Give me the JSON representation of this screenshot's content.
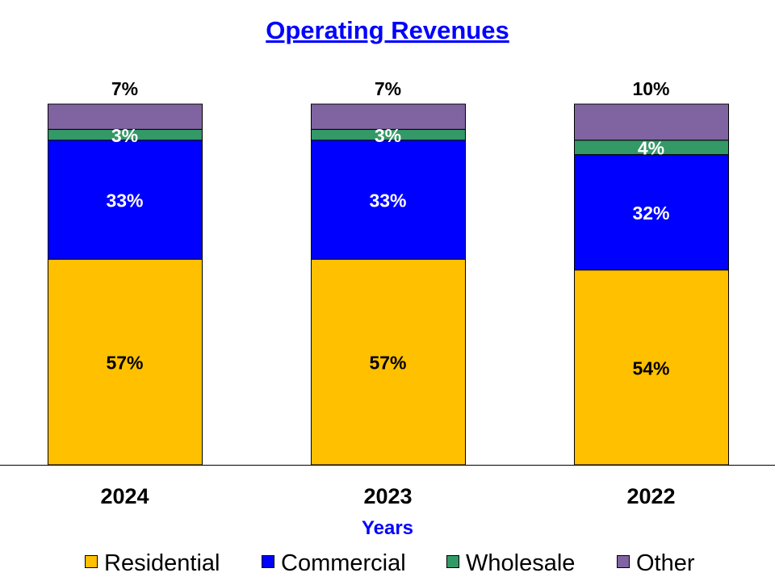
{
  "chart_data": {
    "type": "bar",
    "stacked": true,
    "percent_stacked": true,
    "title": "Operating Revenues",
    "xlabel": "Years",
    "ylabel": "",
    "ylim": [
      0,
      100
    ],
    "grid": false,
    "legend_position": "bottom",
    "categories": [
      "2024",
      "2023",
      "2022"
    ],
    "series": [
      {
        "name": "Residential",
        "values": [
          57,
          57,
          54
        ],
        "labels": [
          "57%",
          "57%",
          "54%"
        ],
        "color": "#FFC000",
        "label_color": "#000000"
      },
      {
        "name": "Commercial",
        "values": [
          33,
          33,
          32
        ],
        "labels": [
          "33%",
          "33%",
          "32%"
        ],
        "color": "#0000FF",
        "label_color": "#FFFFFF"
      },
      {
        "name": "Wholesale",
        "values": [
          3,
          3,
          4
        ],
        "labels": [
          "3%",
          "3%",
          "4%"
        ],
        "color": "#339966",
        "label_color": "#FFFFFF"
      },
      {
        "name": "Other",
        "values": [
          7,
          7,
          10
        ],
        "labels": [
          "7%",
          "7%",
          "10%"
        ],
        "color": "#8064A2",
        "label_color": "#000000"
      }
    ],
    "title_color": "#0000FF",
    "xlabel_color": "#0000FF"
  }
}
